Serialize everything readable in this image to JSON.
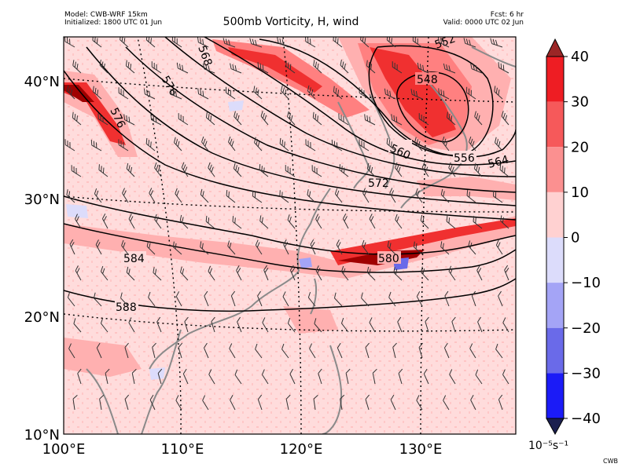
{
  "header": {
    "model": "Model: CWB-WRF 15km",
    "initialized": "Initialized: 1800 UTC 01 Jun",
    "title": "500mb Vorticity, H, wind",
    "forecast": "Fcst: 6 hr",
    "valid": "Valid: 0000 UTC 02 Jun"
  },
  "map": {
    "lon_labels": [
      "100°E",
      "110°E",
      "120°E",
      "130°E"
    ],
    "lat_labels": [
      "40°N",
      "30°N",
      "20°N",
      "10°N"
    ],
    "contour_labels": [
      "576",
      "576",
      "548",
      "552",
      "560",
      "556",
      "564",
      "572",
      "584",
      "580",
      "588",
      "568"
    ],
    "colors": {
      "light_pink": "#ffdcdc",
      "pink": "#ffb0b0",
      "salmon": "#ff8080",
      "red": "#f03030",
      "dark_red": "#a00000",
      "coast": "#8a8a8a"
    }
  },
  "colorbar": {
    "ticks": [
      "40",
      "30",
      "20",
      "10",
      "0",
      "−10",
      "−20",
      "−30",
      "−40"
    ],
    "colors": [
      "#ee1d23",
      "#f6595a",
      "#fb9090",
      "#ffd1d1",
      "#dcdcfb",
      "#a4a4f6",
      "#6a6ae9",
      "#1b1bf7"
    ],
    "top_color": "#9b2626",
    "bottom_color": "#1b1f4f",
    "unit": "10⁻⁵s⁻¹"
  },
  "credit": "CWB"
}
